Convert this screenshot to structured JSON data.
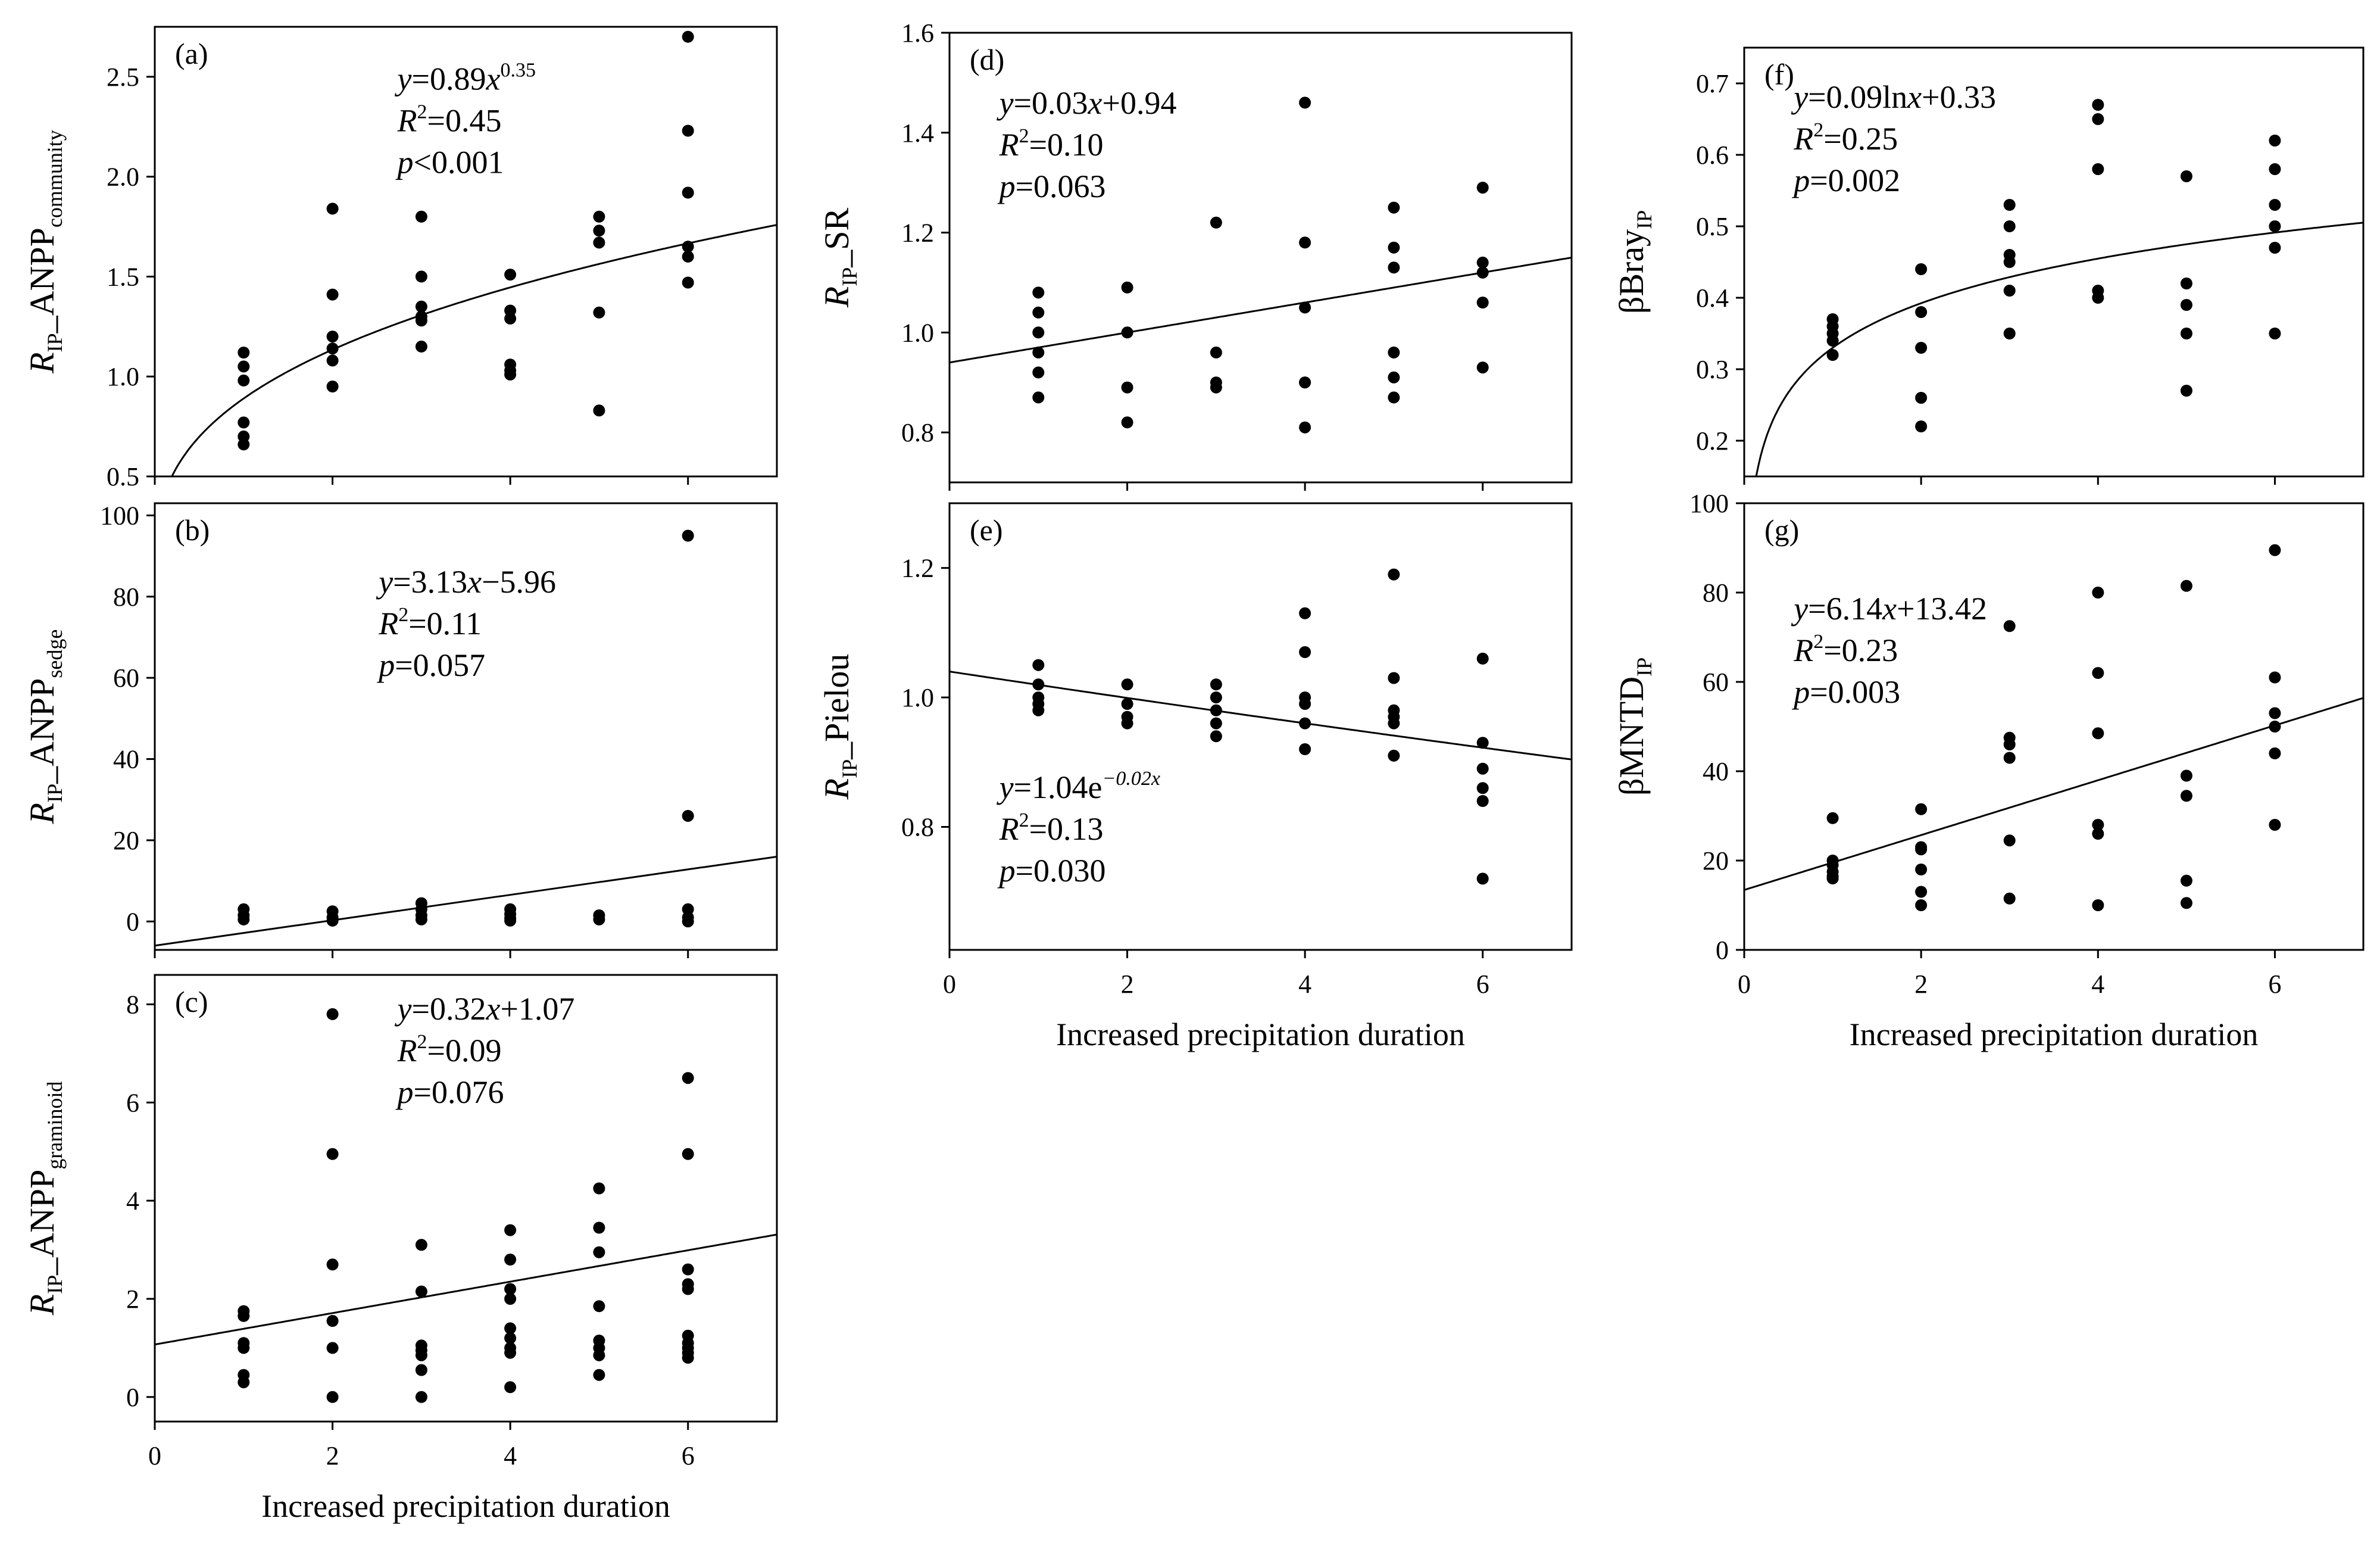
{
  "chart_data": [
    {
      "id": "a",
      "type": "scatter",
      "panel_label": "(a)",
      "ylabel": {
        "prefix": "R",
        "prefix_sub": "IP",
        "main": "_ANPP",
        "main_sub": "community"
      },
      "xlabel": "",
      "xlim": [
        0,
        7
      ],
      "ylim": [
        0.5,
        2.75
      ],
      "xticks": [
        "0",
        "2",
        "4",
        "6"
      ],
      "yticks": [
        "0.5",
        "1.0",
        "1.5",
        "2.0",
        "2.5"
      ],
      "x_tick_labels_shown": false,
      "fit": {
        "type": "power",
        "a": 0.89,
        "b": 0.35
      },
      "equation": {
        "lhs": "y",
        "eq": "=0.89",
        "x": "x",
        "sup": "0.35"
      },
      "r2": {
        "label": "R",
        "sup": "2",
        "value": "=0.45"
      },
      "p": {
        "label": "p",
        "value": "<0.001"
      },
      "points": [
        [
          1,
          1.12
        ],
        [
          1,
          1.05
        ],
        [
          1,
          0.98
        ],
        [
          1,
          0.77
        ],
        [
          1,
          0.7
        ],
        [
          1,
          0.66
        ],
        [
          2,
          1.84
        ],
        [
          2,
          1.41
        ],
        [
          2,
          1.2
        ],
        [
          2,
          1.14
        ],
        [
          2,
          1.08
        ],
        [
          2,
          0.95
        ],
        [
          3,
          1.8
        ],
        [
          3,
          1.5
        ],
        [
          3,
          1.35
        ],
        [
          3,
          1.3
        ],
        [
          3,
          1.28
        ],
        [
          3,
          1.15
        ],
        [
          4,
          1.51
        ],
        [
          4,
          1.33
        ],
        [
          4,
          1.29
        ],
        [
          4,
          1.06
        ],
        [
          4,
          1.03
        ],
        [
          4,
          1.01
        ],
        [
          5,
          1.8
        ],
        [
          5,
          1.73
        ],
        [
          5,
          1.67
        ],
        [
          5,
          1.32
        ],
        [
          5,
          0.83
        ],
        [
          6,
          2.7
        ],
        [
          6,
          2.23
        ],
        [
          6,
          1.92
        ],
        [
          6,
          1.65
        ],
        [
          6,
          1.6
        ],
        [
          6,
          1.47
        ]
      ]
    },
    {
      "id": "b",
      "type": "scatter",
      "panel_label": "(b)",
      "ylabel": {
        "prefix": "R",
        "prefix_sub": "IP",
        "main": "_ANPP",
        "main_sub": "sedge"
      },
      "xlabel": "",
      "xlim": [
        0,
        7
      ],
      "ylim": [
        -7,
        103
      ],
      "xticks": [
        "0",
        "2",
        "4",
        "6"
      ],
      "yticks": [
        "0",
        "20",
        "40",
        "60",
        "80",
        "100"
      ],
      "x_tick_labels_shown": false,
      "fit": {
        "type": "linear",
        "slope": 3.13,
        "intercept": -5.96
      },
      "equation": {
        "lhs": "y",
        "eq": "=3.13",
        "x": "x",
        "rest": "−5.96"
      },
      "r2": {
        "label": "R",
        "sup": "2",
        "value": "=0.11"
      },
      "p": {
        "label": "p",
        "value": "=0.057"
      },
      "points": [
        [
          1,
          3
        ],
        [
          1,
          1.5
        ],
        [
          1,
          0.5
        ],
        [
          2,
          2.5
        ],
        [
          2,
          1
        ],
        [
          2,
          0.2
        ],
        [
          3,
          4.5
        ],
        [
          3,
          3
        ],
        [
          3,
          1.5
        ],
        [
          3,
          0.5
        ],
        [
          4,
          3
        ],
        [
          4,
          1.8
        ],
        [
          4,
          0.8
        ],
        [
          4,
          0.2
        ],
        [
          5,
          1.5
        ],
        [
          5,
          0.5
        ],
        [
          6,
          95
        ],
        [
          6,
          26
        ],
        [
          6,
          3
        ],
        [
          6,
          1
        ],
        [
          6,
          0
        ]
      ]
    },
    {
      "id": "c",
      "type": "scatter",
      "panel_label": "(c)",
      "ylabel": {
        "prefix": "R",
        "prefix_sub": "IP",
        "main": "_ANPP",
        "main_sub": "graminoid"
      },
      "xlabel": "Increased precipitation duration",
      "xlim": [
        0,
        7
      ],
      "ylim": [
        -0.5,
        8.6
      ],
      "xticks": [
        "0",
        "2",
        "4",
        "6"
      ],
      "yticks": [
        "0",
        "2",
        "4",
        "6",
        "8"
      ],
      "x_tick_labels_shown": true,
      "fit": {
        "type": "linear",
        "slope": 0.32,
        "intercept": 1.07
      },
      "equation": {
        "lhs": "y",
        "eq": "=0.32",
        "x": "x",
        "rest": "+1.07"
      },
      "r2": {
        "label": "R",
        "sup": "2",
        "value": "=0.09"
      },
      "p": {
        "label": "p",
        "value": "=0.076"
      },
      "points": [
        [
          1,
          1.75
        ],
        [
          1,
          1.65
        ],
        [
          1,
          1.1
        ],
        [
          1,
          1.0
        ],
        [
          1,
          0.45
        ],
        [
          1,
          0.3
        ],
        [
          2,
          7.8
        ],
        [
          2,
          4.95
        ],
        [
          2,
          2.7
        ],
        [
          2,
          1.55
        ],
        [
          2,
          1.0
        ],
        [
          2,
          0.0
        ],
        [
          3,
          3.1
        ],
        [
          3,
          2.15
        ],
        [
          3,
          1.05
        ],
        [
          3,
          0.95
        ],
        [
          3,
          0.85
        ],
        [
          3,
          0.55
        ],
        [
          3,
          0.0
        ],
        [
          4,
          3.4
        ],
        [
          4,
          2.8
        ],
        [
          4,
          2.2
        ],
        [
          4,
          2.0
        ],
        [
          4,
          1.4
        ],
        [
          4,
          1.2
        ],
        [
          4,
          1.0
        ],
        [
          4,
          0.9
        ],
        [
          4,
          0.2
        ],
        [
          5,
          4.25
        ],
        [
          5,
          3.45
        ],
        [
          5,
          2.95
        ],
        [
          5,
          1.85
        ],
        [
          5,
          1.15
        ],
        [
          5,
          1.0
        ],
        [
          5,
          0.85
        ],
        [
          5,
          0.45
        ],
        [
          6,
          6.5
        ],
        [
          6,
          4.95
        ],
        [
          6,
          2.6
        ],
        [
          6,
          2.3
        ],
        [
          6,
          2.2
        ],
        [
          6,
          1.25
        ],
        [
          6,
          1.1
        ],
        [
          6,
          1.0
        ],
        [
          6,
          0.9
        ],
        [
          6,
          0.8
        ]
      ]
    },
    {
      "id": "d",
      "type": "scatter",
      "panel_label": "(d)",
      "ylabel": {
        "prefix": "R",
        "prefix_sub": "IP",
        "main": "_SR",
        "main_sub": ""
      },
      "xlabel": "",
      "xlim": [
        0,
        7
      ],
      "ylim": [
        0.7,
        1.6
      ],
      "xticks": [
        "0",
        "2",
        "4",
        "6"
      ],
      "yticks": [
        "0.8",
        "1.0",
        "1.2",
        "1.4",
        "1.6"
      ],
      "x_tick_labels_shown": false,
      "fit": {
        "type": "linear",
        "slope": 0.03,
        "intercept": 0.94
      },
      "equation": {
        "lhs": "y",
        "eq": "=0.03",
        "x": "x",
        "rest": "+0.94"
      },
      "r2": {
        "label": "R",
        "sup": "2",
        "value": "=0.10"
      },
      "p": {
        "label": "p",
        "value": "=0.063"
      },
      "points": [
        [
          1,
          1.08
        ],
        [
          1,
          1.04
        ],
        [
          1,
          1.0
        ],
        [
          1,
          0.96
        ],
        [
          1,
          0.92
        ],
        [
          1,
          0.87
        ],
        [
          2,
          1.09
        ],
        [
          2,
          1.0
        ],
        [
          2,
          0.89
        ],
        [
          2,
          0.82
        ],
        [
          3,
          1.22
        ],
        [
          3,
          0.96
        ],
        [
          3,
          0.9
        ],
        [
          3,
          0.89
        ],
        [
          4,
          1.46
        ],
        [
          4,
          1.18
        ],
        [
          4,
          1.05
        ],
        [
          4,
          0.9
        ],
        [
          4,
          0.9
        ],
        [
          4,
          0.81
        ],
        [
          5,
          1.25
        ],
        [
          5,
          1.17
        ],
        [
          5,
          1.13
        ],
        [
          5,
          0.96
        ],
        [
          5,
          0.91
        ],
        [
          5,
          0.87
        ],
        [
          6,
          1.29
        ],
        [
          6,
          1.14
        ],
        [
          6,
          1.12
        ],
        [
          6,
          1.06
        ],
        [
          6,
          0.93
        ]
      ]
    },
    {
      "id": "e",
      "type": "scatter",
      "panel_label": "(e)",
      "ylabel": {
        "prefix": "R",
        "prefix_sub": "IP",
        "main": "_Pielou",
        "main_sub": ""
      },
      "xlabel": "Increased precipitation duration",
      "xlim": [
        0,
        7
      ],
      "ylim": [
        0.61,
        1.3
      ],
      "xticks": [
        "0",
        "2",
        "4",
        "6"
      ],
      "yticks": [
        "0.8",
        "1.0",
        "1.2"
      ],
      "x_tick_labels_shown": true,
      "fit": {
        "type": "exponential",
        "a": 1.04,
        "b": -0.02
      },
      "equation": {
        "lhs": "y",
        "eq": "=1.04e",
        "sup": "−0.02x"
      },
      "r2": {
        "label": "R",
        "sup": "2",
        "value": "=0.13"
      },
      "p": {
        "label": "p",
        "value": "=0.030"
      },
      "points": [
        [
          1,
          1.05
        ],
        [
          1,
          1.02
        ],
        [
          1,
          1.0
        ],
        [
          1,
          0.99
        ],
        [
          1,
          0.98
        ],
        [
          2,
          1.02
        ],
        [
          2,
          0.99
        ],
        [
          2,
          0.97
        ],
        [
          2,
          0.96
        ],
        [
          3,
          1.02
        ],
        [
          3,
          1.0
        ],
        [
          3,
          0.98
        ],
        [
          3,
          0.96
        ],
        [
          3,
          0.94
        ],
        [
          4,
          1.13
        ],
        [
          4,
          1.07
        ],
        [
          4,
          1.0
        ],
        [
          4,
          0.99
        ],
        [
          4,
          0.96
        ],
        [
          4,
          0.92
        ],
        [
          5,
          1.19
        ],
        [
          5,
          1.03
        ],
        [
          5,
          0.98
        ],
        [
          5,
          0.97
        ],
        [
          5,
          0.96
        ],
        [
          5,
          0.91
        ],
        [
          6,
          1.06
        ],
        [
          6,
          0.93
        ],
        [
          6,
          0.89
        ],
        [
          6,
          0.86
        ],
        [
          6,
          0.84
        ],
        [
          6,
          0.72
        ]
      ]
    },
    {
      "id": "f",
      "type": "scatter",
      "panel_label": "(f)",
      "ylabel": {
        "prefix": "βBray",
        "prefix_sub": "IP",
        "main": "",
        "main_sub": ""
      },
      "xlabel": "",
      "xlim": [
        0,
        7
      ],
      "ylim": [
        0.15,
        0.75
      ],
      "xticks": [
        "0",
        "2",
        "4",
        "6"
      ],
      "yticks": [
        "0.2",
        "0.3",
        "0.4",
        "0.5",
        "0.6",
        "0.7"
      ],
      "x_tick_labels_shown": false,
      "fit": {
        "type": "log",
        "a": 0.09,
        "b": 0.33
      },
      "equation": {
        "lhs": "y",
        "eq": "=0.09ln",
        "x": "x",
        "rest": "+0.33"
      },
      "r2": {
        "label": "R",
        "sup": "2",
        "value": "=0.25"
      },
      "p": {
        "label": "p",
        "value": "=0.002"
      },
      "points": [
        [
          1,
          0.37
        ],
        [
          1,
          0.36
        ],
        [
          1,
          0.35
        ],
        [
          1,
          0.34
        ],
        [
          1,
          0.32
        ],
        [
          2,
          0.44
        ],
        [
          2,
          0.38
        ],
        [
          2,
          0.33
        ],
        [
          2,
          0.26
        ],
        [
          2,
          0.22
        ],
        [
          3,
          0.53
        ],
        [
          3,
          0.5
        ],
        [
          3,
          0.46
        ],
        [
          3,
          0.45
        ],
        [
          3,
          0.41
        ],
        [
          3,
          0.35
        ],
        [
          4,
          0.67
        ],
        [
          4,
          0.65
        ],
        [
          4,
          0.58
        ],
        [
          4,
          0.41
        ],
        [
          4,
          0.4
        ],
        [
          5,
          0.57
        ],
        [
          5,
          0.42
        ],
        [
          5,
          0.39
        ],
        [
          5,
          0.35
        ],
        [
          5,
          0.27
        ],
        [
          6,
          0.62
        ],
        [
          6,
          0.58
        ],
        [
          6,
          0.53
        ],
        [
          6,
          0.5
        ],
        [
          6,
          0.47
        ],
        [
          6,
          0.35
        ]
      ]
    },
    {
      "id": "g",
      "type": "scatter",
      "panel_label": "(g)",
      "ylabel": {
        "prefix": "βMNTD",
        "prefix_sub": "IP",
        "main": "",
        "main_sub": ""
      },
      "xlabel": "Increased precipitation duration",
      "xlim": [
        0,
        7
      ],
      "ylim": [
        0,
        100
      ],
      "xticks": [
        "0",
        "2",
        "4",
        "6"
      ],
      "yticks": [
        "0",
        "20",
        "40",
        "60",
        "80",
        "100"
      ],
      "x_tick_labels_shown": true,
      "fit": {
        "type": "linear",
        "slope": 6.14,
        "intercept": 13.42
      },
      "equation": {
        "lhs": "y",
        "eq": "=6.14",
        "x": "x",
        "rest": "+13.42"
      },
      "r2": {
        "label": "R",
        "sup": "2",
        "value": "=0.23"
      },
      "p": {
        "label": "p",
        "value": "=0.003"
      },
      "points": [
        [
          1,
          29.5
        ],
        [
          1,
          20
        ],
        [
          1,
          19
        ],
        [
          1,
          17.5
        ],
        [
          1,
          16.5
        ],
        [
          1,
          16
        ],
        [
          2,
          31.5
        ],
        [
          2,
          23
        ],
        [
          2,
          22.5
        ],
        [
          2,
          18
        ],
        [
          2,
          13
        ],
        [
          2,
          10
        ],
        [
          3,
          72.5
        ],
        [
          3,
          47.5
        ],
        [
          3,
          46
        ],
        [
          3,
          43
        ],
        [
          3,
          24.5
        ],
        [
          3,
          11.5
        ],
        [
          4,
          80
        ],
        [
          4,
          62
        ],
        [
          4,
          48.5
        ],
        [
          4,
          28
        ],
        [
          4,
          26
        ],
        [
          4,
          10
        ],
        [
          5,
          81.5
        ],
        [
          5,
          39
        ],
        [
          5,
          34.5
        ],
        [
          5,
          15.5
        ],
        [
          5,
          10.5
        ],
        [
          6,
          89.5
        ],
        [
          6,
          61
        ],
        [
          6,
          53
        ],
        [
          6,
          50
        ],
        [
          6,
          44
        ],
        [
          6,
          28
        ]
      ]
    }
  ]
}
